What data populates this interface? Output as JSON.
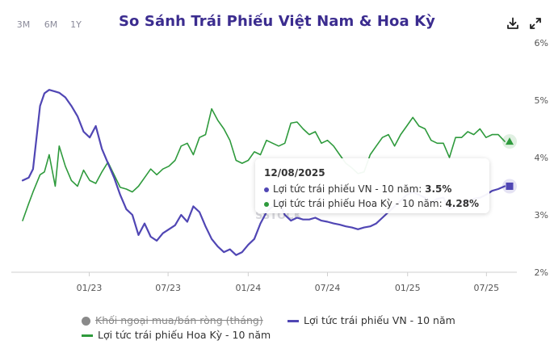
{
  "toolbar": {
    "ranges": [
      "3M",
      "6M",
      "1Y"
    ],
    "download_icon": "download-icon",
    "expand_icon": "expand-icon"
  },
  "watermark": "SSTOCK",
  "tooltip": {
    "date": "12/08/2025",
    "vn_label": "Lợi tức trái phiếu VN - 10 năm: ",
    "vn_value": "3.5%",
    "us_label": "Lợi tức trái phiếu Hoa Kỳ - 10 năm: ",
    "us_value": "4.28%"
  },
  "legend": {
    "foreign": "Khối ngoại mua/bán ròng (tháng)",
    "vn": "Lợi tức trái phiếu VN - 10 năm",
    "us": "Lợi tức trái phiếu Hoa Kỳ - 10 năm"
  },
  "chart_data": {
    "type": "line",
    "title": "So Sánh Trái Phiếu Việt Nam & Hoa Kỳ",
    "x_tick_labels": [
      "01/23",
      "07/23",
      "01/24",
      "07/24",
      "01/25",
      "07/25"
    ],
    "y_tick_labels": [
      "2%",
      "3%",
      "4%",
      "5%",
      "6%"
    ],
    "ylim": [
      2,
      6
    ],
    "y_axis_position": "right",
    "grid": false,
    "legend_position": "bottom",
    "x": [
      "2022-08-01",
      "2022-08-15",
      "2022-08-25",
      "2022-09-10",
      "2022-09-20",
      "2022-10-01",
      "2022-10-15",
      "2022-10-24",
      "2022-11-07",
      "2022-11-21",
      "2022-12-05",
      "2022-12-19",
      "2023-01-02",
      "2023-01-16",
      "2023-01-30",
      "2023-02-13",
      "2023-02-27",
      "2023-03-13",
      "2023-03-27",
      "2023-04-10",
      "2023-04-24",
      "2023-05-08",
      "2023-05-22",
      "2023-06-05",
      "2023-06-19",
      "2023-07-03",
      "2023-07-17",
      "2023-07-31",
      "2023-08-14",
      "2023-08-28",
      "2023-09-11",
      "2023-09-25",
      "2023-10-09",
      "2023-10-23",
      "2023-11-06",
      "2023-11-20",
      "2023-12-04",
      "2023-12-18",
      "2024-01-01",
      "2024-01-15",
      "2024-01-29",
      "2024-02-12",
      "2024-02-26",
      "2024-03-11",
      "2024-03-25",
      "2024-04-08",
      "2024-04-22",
      "2024-05-06",
      "2024-05-20",
      "2024-06-03",
      "2024-06-17",
      "2024-07-01",
      "2024-07-15",
      "2024-07-29",
      "2024-08-12",
      "2024-08-26",
      "2024-09-09",
      "2024-09-23",
      "2024-10-07",
      "2024-10-21",
      "2024-11-04",
      "2024-11-18",
      "2024-12-02",
      "2024-12-16",
      "2024-12-30",
      "2025-01-13",
      "2025-01-27",
      "2025-02-10",
      "2025-02-24",
      "2025-03-10",
      "2025-03-24",
      "2025-04-07",
      "2025-04-21",
      "2025-05-05",
      "2025-05-19",
      "2025-06-02",
      "2025-06-16",
      "2025-06-30",
      "2025-07-14",
      "2025-07-28",
      "2025-08-12"
    ],
    "series": [
      {
        "name": "Lợi tức trái phiếu VN - 10 năm",
        "color": "#5046b4",
        "marker": "square",
        "values": [
          3.6,
          3.65,
          3.8,
          4.9,
          5.12,
          5.18,
          5.15,
          5.13,
          5.05,
          4.9,
          4.72,
          4.45,
          4.35,
          4.55,
          4.15,
          3.9,
          3.65,
          3.35,
          3.1,
          3.0,
          2.65,
          2.85,
          2.62,
          2.55,
          2.68,
          2.75,
          2.82,
          3.0,
          2.88,
          3.15,
          3.05,
          2.8,
          2.58,
          2.45,
          2.35,
          2.4,
          2.3,
          2.35,
          2.48,
          2.58,
          2.85,
          3.05,
          3.15,
          3.25,
          3.0,
          2.9,
          2.95,
          2.92,
          2.92,
          2.95,
          2.9,
          2.88,
          2.85,
          2.83,
          2.8,
          2.78,
          2.75,
          2.78,
          2.8,
          2.85,
          2.95,
          3.05,
          3.15,
          3.25,
          3.35,
          3.4,
          3.35,
          3.3,
          3.22,
          3.28,
          3.3,
          3.1,
          3.15,
          3.2,
          3.25,
          3.28,
          3.3,
          3.35,
          3.42,
          3.45,
          3.5
        ]
      },
      {
        "name": "Lợi tức trái phiếu Hoa Kỳ - 10 năm",
        "color": "#2e9a3c",
        "marker": "triangle",
        "values": [
          2.9,
          3.2,
          3.4,
          3.7,
          3.75,
          4.05,
          3.5,
          4.2,
          3.85,
          3.6,
          3.5,
          3.78,
          3.6,
          3.55,
          3.75,
          3.92,
          3.7,
          3.48,
          3.45,
          3.4,
          3.5,
          3.65,
          3.8,
          3.7,
          3.8,
          3.85,
          3.95,
          4.2,
          4.25,
          4.05,
          4.35,
          4.4,
          4.85,
          4.65,
          4.5,
          4.3,
          3.95,
          3.9,
          3.95,
          4.1,
          4.05,
          4.3,
          4.25,
          4.2,
          4.25,
          4.6,
          4.62,
          4.5,
          4.4,
          4.45,
          4.25,
          4.3,
          4.2,
          4.05,
          3.9,
          3.82,
          3.72,
          3.75,
          4.05,
          4.2,
          4.35,
          4.4,
          4.2,
          4.4,
          4.55,
          4.7,
          4.55,
          4.5,
          4.3,
          4.25,
          4.25,
          4.0,
          4.35,
          4.35,
          4.45,
          4.4,
          4.5,
          4.35,
          4.4,
          4.4,
          4.28
        ]
      }
    ]
  }
}
